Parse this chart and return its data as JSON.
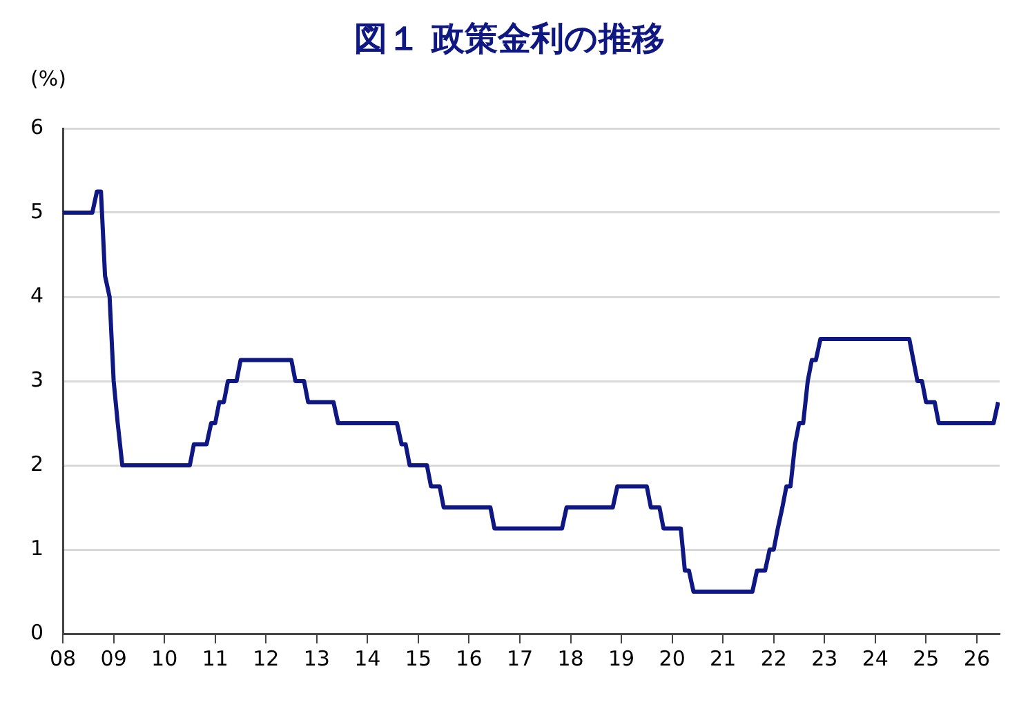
{
  "chart_data": {
    "type": "line",
    "title": "図１ 政策金利の推移",
    "ylabel": "(%)",
    "x": [
      2008.0,
      2008.58,
      2008.67,
      2008.75,
      2008.83,
      2008.92,
      2009.0,
      2009.08,
      2009.17,
      2010.5,
      2010.58,
      2010.83,
      2010.92,
      2011.0,
      2011.08,
      2011.17,
      2011.25,
      2011.42,
      2011.5,
      2012.5,
      2012.58,
      2012.75,
      2012.83,
      2013.33,
      2013.42,
      2014.58,
      2014.67,
      2014.75,
      2014.83,
      2015.17,
      2015.25,
      2015.42,
      2015.5,
      2016.42,
      2016.5,
      2017.83,
      2017.92,
      2018.83,
      2018.92,
      2019.5,
      2019.58,
      2019.75,
      2019.83,
      2020.17,
      2020.25,
      2020.33,
      2020.42,
      2021.58,
      2021.67,
      2021.83,
      2021.92,
      2022.0,
      2022.08,
      2022.17,
      2022.25,
      2022.33,
      2022.42,
      2022.5,
      2022.58,
      2022.67,
      2022.75,
      2022.83,
      2022.92,
      2024.67,
      2024.75,
      2024.83,
      2024.92,
      2025.0,
      2025.17,
      2025.25,
      2026.33,
      2026.42
    ],
    "series": [
      {
        "color": "#0f1782",
        "values": [
          5.0,
          5.0,
          5.25,
          5.25,
          4.25,
          4.0,
          3.0,
          2.5,
          2.0,
          2.0,
          2.25,
          2.25,
          2.5,
          2.5,
          2.75,
          2.75,
          3.0,
          3.0,
          3.25,
          3.25,
          3.0,
          3.0,
          2.75,
          2.75,
          2.5,
          2.5,
          2.25,
          2.25,
          2.0,
          2.0,
          1.75,
          1.75,
          1.5,
          1.5,
          1.25,
          1.25,
          1.5,
          1.5,
          1.75,
          1.75,
          1.5,
          1.5,
          1.25,
          1.25,
          0.75,
          0.75,
          0.5,
          0.5,
          0.75,
          0.75,
          1.0,
          1.0,
          1.25,
          1.5,
          1.75,
          1.75,
          2.25,
          2.5,
          2.5,
          3.0,
          3.25,
          3.25,
          3.5,
          3.5,
          3.25,
          3.0,
          3.0,
          2.75,
          2.75,
          2.5,
          2.5,
          2.75
        ]
      }
    ],
    "xlim": [
      2008,
      2026.45
    ],
    "xticks": [
      {
        "value": 2008,
        "label": "08"
      },
      {
        "value": 2009,
        "label": "09"
      },
      {
        "value": 2010,
        "label": "10"
      },
      {
        "value": 2011,
        "label": "11"
      },
      {
        "value": 2012,
        "label": "12"
      },
      {
        "value": 2013,
        "label": "13"
      },
      {
        "value": 2014,
        "label": "14"
      },
      {
        "value": 2015,
        "label": "15"
      },
      {
        "value": 2016,
        "label": "16"
      },
      {
        "value": 2017,
        "label": "17"
      },
      {
        "value": 2018,
        "label": "18"
      },
      {
        "value": 2019,
        "label": "19"
      },
      {
        "value": 2020,
        "label": "20"
      },
      {
        "value": 2021,
        "label": "21"
      },
      {
        "value": 2022,
        "label": "22"
      },
      {
        "value": 2023,
        "label": "23"
      },
      {
        "value": 2024,
        "label": "24"
      },
      {
        "value": 2025,
        "label": "25"
      },
      {
        "value": 2026,
        "label": "26"
      }
    ],
    "ylim": [
      0,
      6
    ],
    "yticks": [
      0,
      1,
      2,
      3,
      4,
      5,
      6
    ],
    "grid": "y",
    "legend": false,
    "marker": "none",
    "line_style": "solid"
  }
}
